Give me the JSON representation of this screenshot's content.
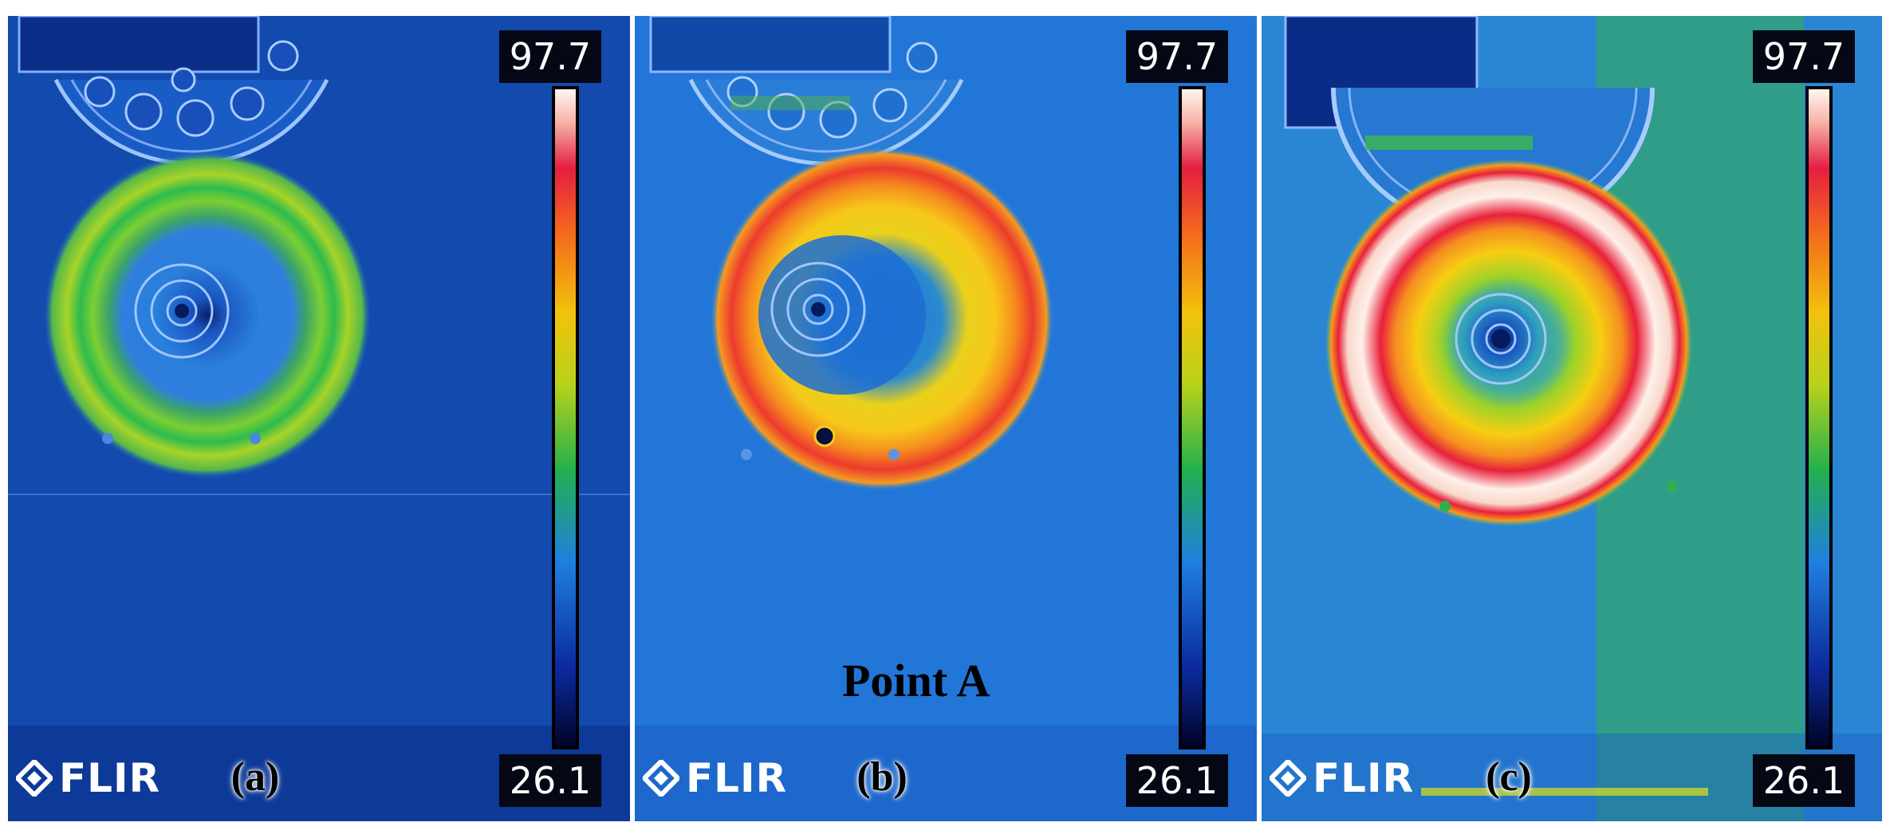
{
  "brand": "FLIR",
  "panels": [
    {
      "label": "(a)",
      "scale_max": "97.7",
      "scale_min": "26.1"
    },
    {
      "label": "(b)",
      "scale_max": "97.7",
      "scale_min": "26.1",
      "marker_label": "Point A"
    },
    {
      "label": "(c)",
      "scale_max": "97.7",
      "scale_min": "26.1"
    }
  ],
  "colors": {
    "background": "#0d3a8f",
    "cold": "#0a1560",
    "cool": "#1f78d8",
    "green": "#2dbb4e",
    "yellow": "#f0d010",
    "orange": "#f47b1e",
    "red": "#e8203a",
    "white_hot": "#fff3ec"
  }
}
